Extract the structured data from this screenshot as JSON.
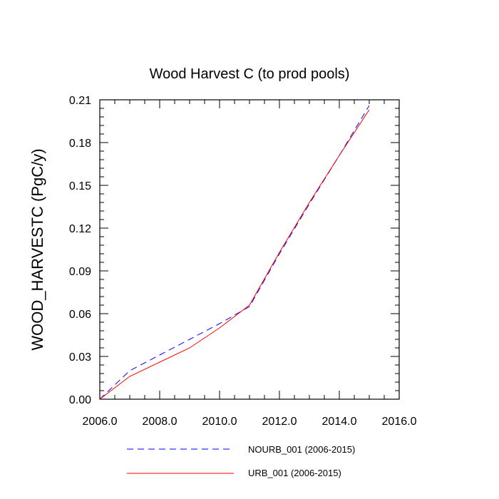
{
  "chart_data": {
    "type": "line",
    "title": "Wood Harvest C (to prod pools)",
    "xlabel": "",
    "ylabel": "WOOD_HARVESTC  (PgC/y)",
    "xlim": [
      2006.0,
      2016.0
    ],
    "ylim": [
      0.0,
      0.21
    ],
    "x_ticks": [
      "2006.0",
      "2008.0",
      "2010.0",
      "2012.0",
      "2014.0",
      "2016.0"
    ],
    "y_ticks": [
      "0.00",
      "0.03",
      "0.06",
      "0.09",
      "0.12",
      "0.15",
      "0.18",
      "0.21"
    ],
    "x": [
      2006,
      2007,
      2008,
      2009,
      2010,
      2011,
      2012,
      2013,
      2014,
      2015
    ],
    "series": [
      {
        "name": "NOURB_001 (2006-2015)",
        "color": "#0000ff",
        "dash": "dashed",
        "values": [
          0.0,
          0.02,
          0.031,
          0.042,
          0.053,
          0.065,
          0.102,
          0.137,
          0.171,
          0.206
        ]
      },
      {
        "name": "URB_001 (2006-2015)",
        "color": "#ff0000",
        "dash": "solid",
        "values": [
          0.0,
          0.016,
          0.026,
          0.036,
          0.05,
          0.066,
          0.103,
          0.138,
          0.171,
          0.203
        ]
      }
    ],
    "grid": false,
    "legend_position": "bottom"
  }
}
